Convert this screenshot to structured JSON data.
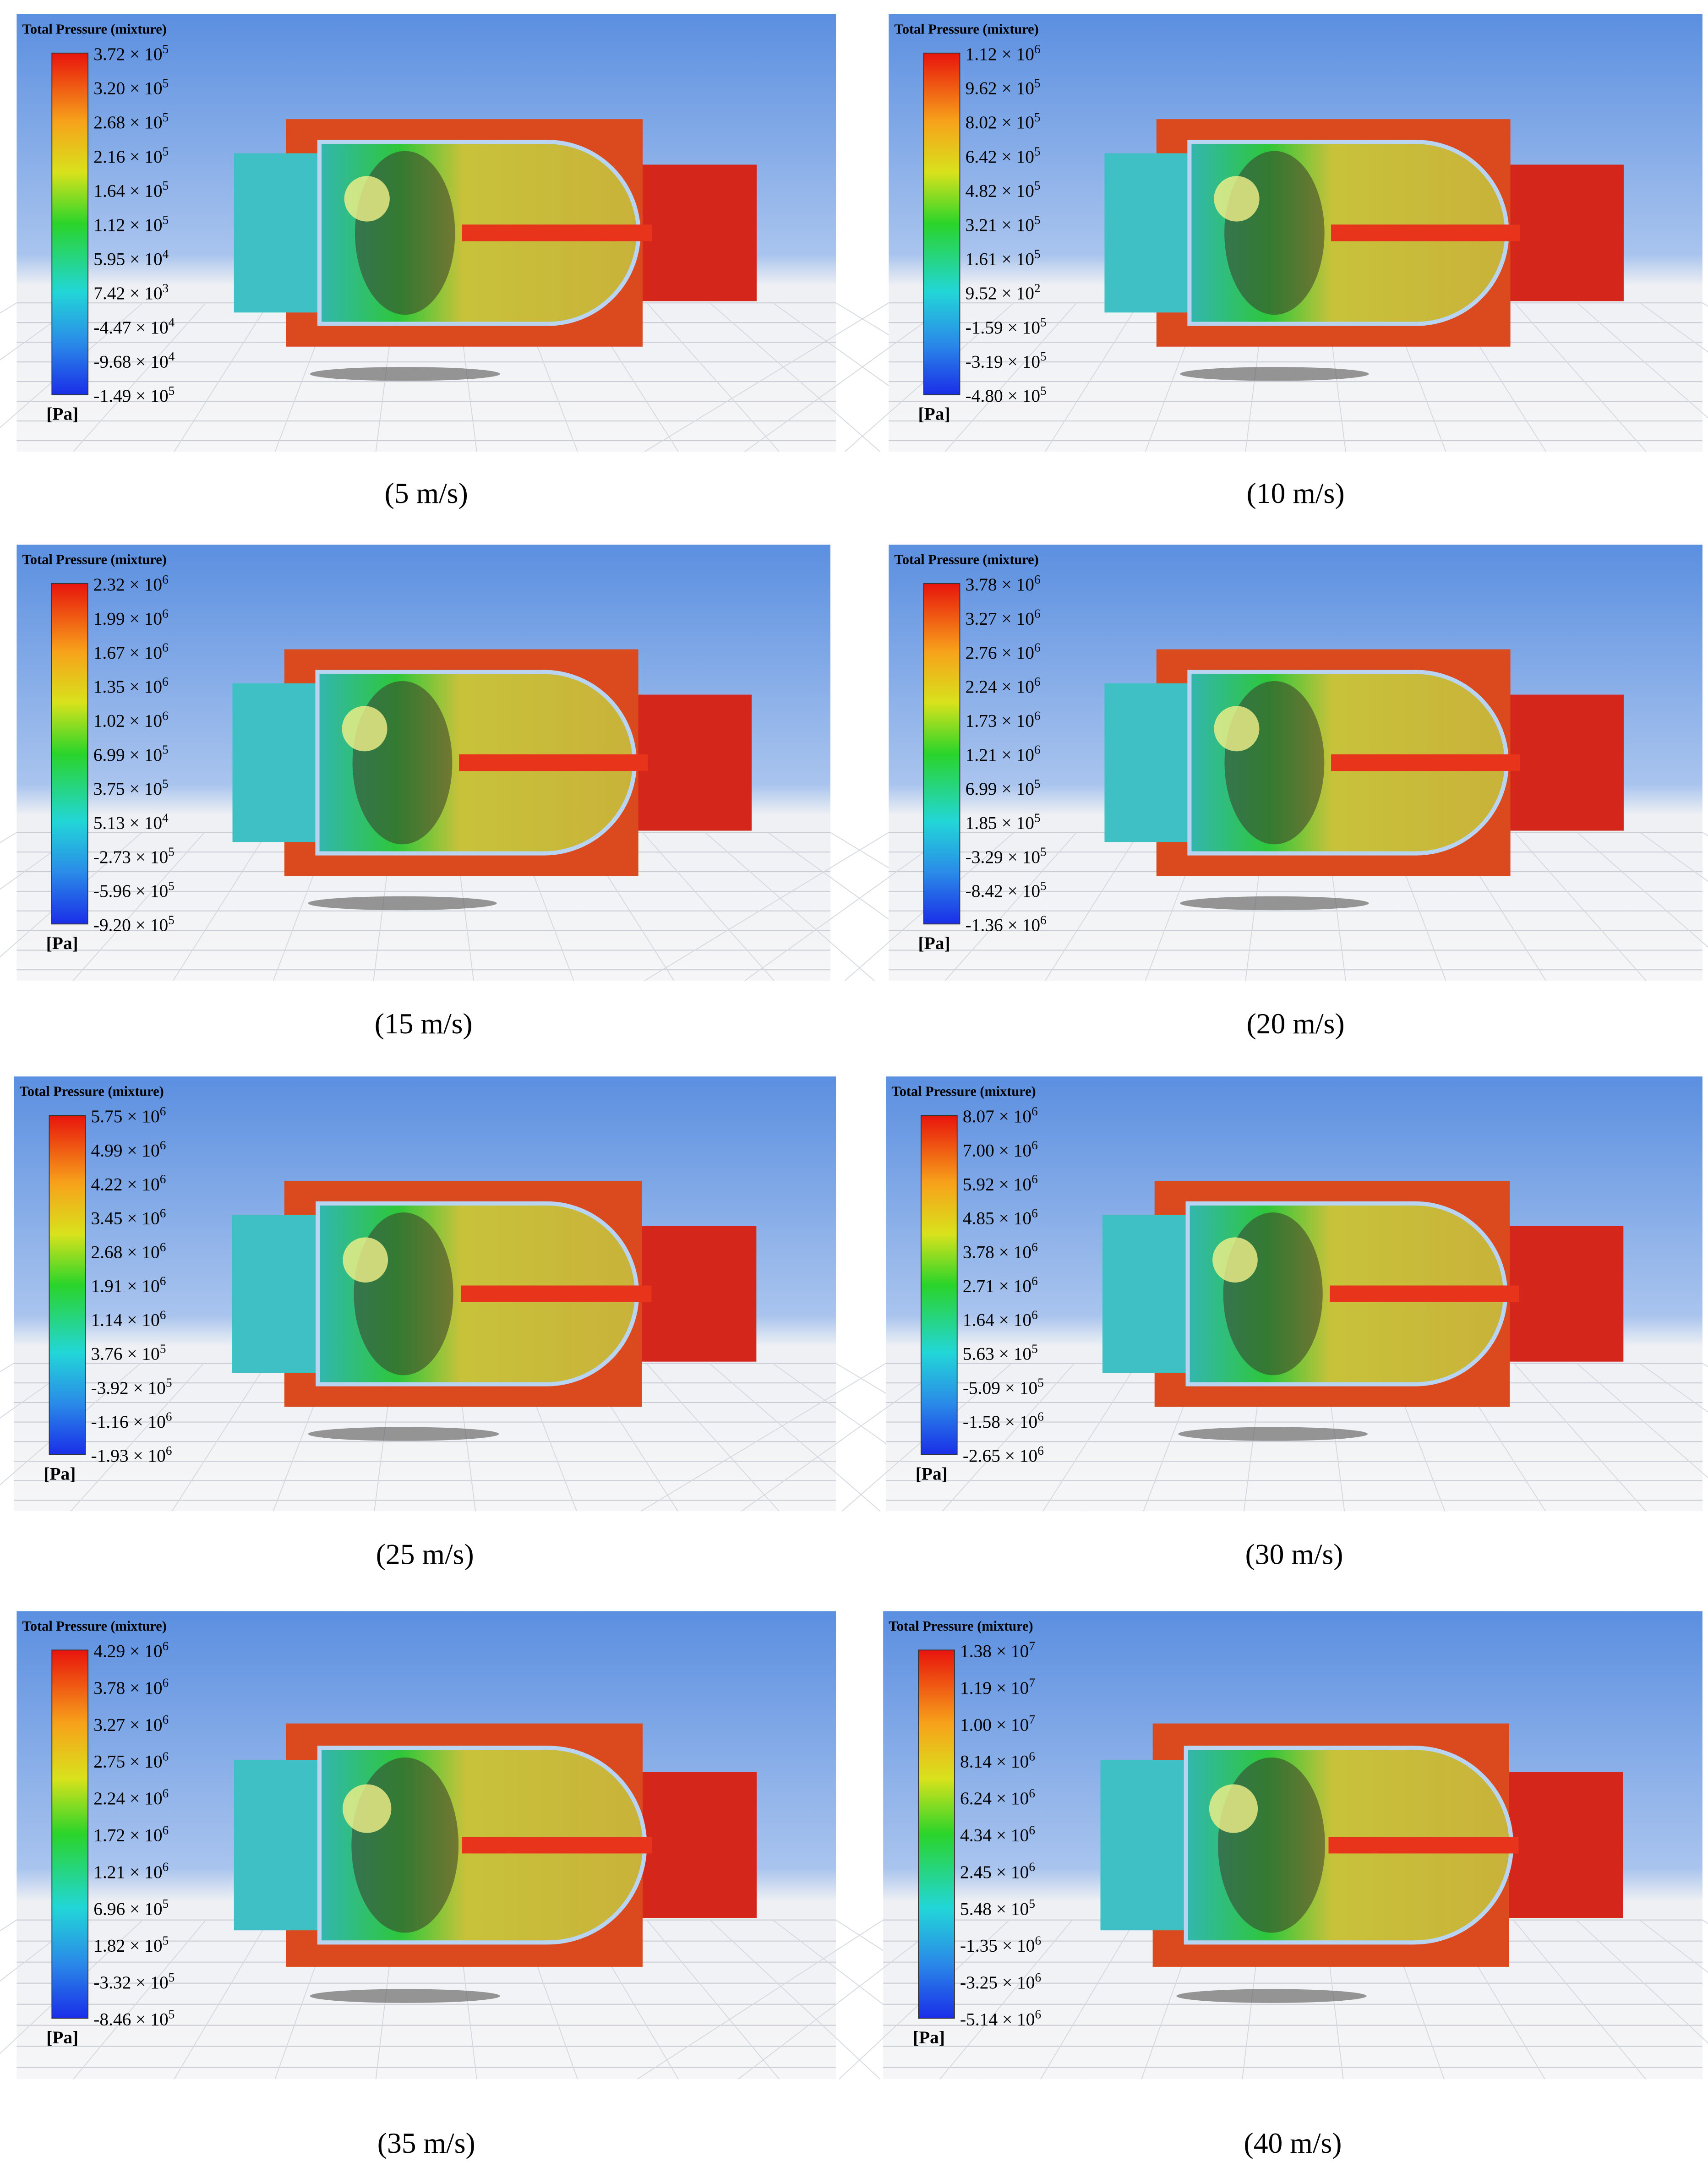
{
  "unit_label": "[Pa]",
  "title": "Total Pressure (mixture)",
  "panels": [
    {
      "caption": "(5 m/s)",
      "ticks": [
        [
          "3.72 × 10",
          "5"
        ],
        [
          "3.20 × 10",
          "5"
        ],
        [
          "2.68 × 10",
          "5"
        ],
        [
          "2.16 × 10",
          "5"
        ],
        [
          "1.64 × 10",
          "5"
        ],
        [
          "1.12 × 10",
          "5"
        ],
        [
          "5.95 × 10",
          "4"
        ],
        [
          "7.42 × 10",
          "3"
        ],
        [
          "-4.47 × 10",
          "4"
        ],
        [
          "-9.68 × 10",
          "4"
        ],
        [
          "-1.49 × 10",
          "5"
        ]
      ]
    },
    {
      "caption": "(10 m/s)",
      "ticks": [
        [
          "1.12 × 10",
          "6"
        ],
        [
          "9.62 × 10",
          "5"
        ],
        [
          "8.02 × 10",
          "5"
        ],
        [
          "6.42 × 10",
          "5"
        ],
        [
          "4.82 × 10",
          "5"
        ],
        [
          "3.21 × 10",
          "5"
        ],
        [
          "1.61 × 10",
          "5"
        ],
        [
          "9.52 × 10",
          "2"
        ],
        [
          "-1.59 × 10",
          "5"
        ],
        [
          "-3.19 × 10",
          "5"
        ],
        [
          "-4.80 × 10",
          "5"
        ]
      ]
    },
    {
      "caption": "(15 m/s)",
      "ticks": [
        [
          "2.32 × 10",
          "6"
        ],
        [
          "1.99 × 10",
          "6"
        ],
        [
          "1.67 × 10",
          "6"
        ],
        [
          "1.35 × 10",
          "6"
        ],
        [
          "1.02 × 10",
          "6"
        ],
        [
          "6.99 × 10",
          "5"
        ],
        [
          "3.75 × 10",
          "5"
        ],
        [
          "5.13 × 10",
          "4"
        ],
        [
          "-2.73 × 10",
          "5"
        ],
        [
          "-5.96 × 10",
          "5"
        ],
        [
          "-9.20 × 10",
          "5"
        ]
      ]
    },
    {
      "caption": "(20 m/s)",
      "ticks": [
        [
          "3.78 × 10",
          "6"
        ],
        [
          "3.27 × 10",
          "6"
        ],
        [
          "2.76 × 10",
          "6"
        ],
        [
          "2.24 × 10",
          "6"
        ],
        [
          "1.73 × 10",
          "6"
        ],
        [
          "1.21 × 10",
          "6"
        ],
        [
          "6.99 × 10",
          "5"
        ],
        [
          "1.85 × 10",
          "5"
        ],
        [
          "-3.29 × 10",
          "5"
        ],
        [
          "-8.42 × 10",
          "5"
        ],
        [
          "-1.36 × 10",
          "6"
        ]
      ]
    },
    {
      "caption": "(25 m/s)",
      "ticks": [
        [
          "5.75 × 10",
          "6"
        ],
        [
          "4.99 × 10",
          "6"
        ],
        [
          "4.22 × 10",
          "6"
        ],
        [
          "3.45 × 10",
          "6"
        ],
        [
          "2.68 × 10",
          "6"
        ],
        [
          "1.91 × 10",
          "6"
        ],
        [
          "1.14 × 10",
          "6"
        ],
        [
          "3.76 × 10",
          "5"
        ],
        [
          "-3.92 × 10",
          "5"
        ],
        [
          "-1.16 × 10",
          "6"
        ],
        [
          "-1.93 × 10",
          "6"
        ]
      ]
    },
    {
      "caption": "(30 m/s)",
      "ticks": [
        [
          "8.07 × 10",
          "6"
        ],
        [
          "7.00 × 10",
          "6"
        ],
        [
          "5.92 × 10",
          "6"
        ],
        [
          "4.85 × 10",
          "6"
        ],
        [
          "3.78 × 10",
          "6"
        ],
        [
          "2.71 × 10",
          "6"
        ],
        [
          "1.64 × 10",
          "6"
        ],
        [
          "5.63 × 10",
          "5"
        ],
        [
          "-5.09 × 10",
          "5"
        ],
        [
          "-1.58 × 10",
          "6"
        ],
        [
          "-2.65 × 10",
          "6"
        ]
      ]
    },
    {
      "caption": "(35 m/s)",
      "ticks": [
        [
          "4.29 × 10",
          "6"
        ],
        [
          "3.78 × 10",
          "6"
        ],
        [
          "3.27 × 10",
          "6"
        ],
        [
          "2.75 × 10",
          "6"
        ],
        [
          "2.24 × 10",
          "6"
        ],
        [
          "1.72 × 10",
          "6"
        ],
        [
          "1.21 × 10",
          "6"
        ],
        [
          "6.96 × 10",
          "5"
        ],
        [
          "1.82 × 10",
          "5"
        ],
        [
          "-3.32 × 10",
          "5"
        ],
        [
          "-8.46 × 10",
          "5"
        ]
      ]
    },
    {
      "caption": "(40 m/s)",
      "ticks": [
        [
          "1.38 × 10",
          "7"
        ],
        [
          "1.19 × 10",
          "7"
        ],
        [
          "1.00 × 10",
          "7"
        ],
        [
          "8.14 × 10",
          "6"
        ],
        [
          "6.24 × 10",
          "6"
        ],
        [
          "4.34 × 10",
          "6"
        ],
        [
          "2.45 × 10",
          "6"
        ],
        [
          "5.48 × 10",
          "5"
        ],
        [
          "-1.35 × 10",
          "6"
        ],
        [
          "-3.25 × 10",
          "6"
        ],
        [
          "-5.14 × 10",
          "6"
        ]
      ]
    }
  ]
}
